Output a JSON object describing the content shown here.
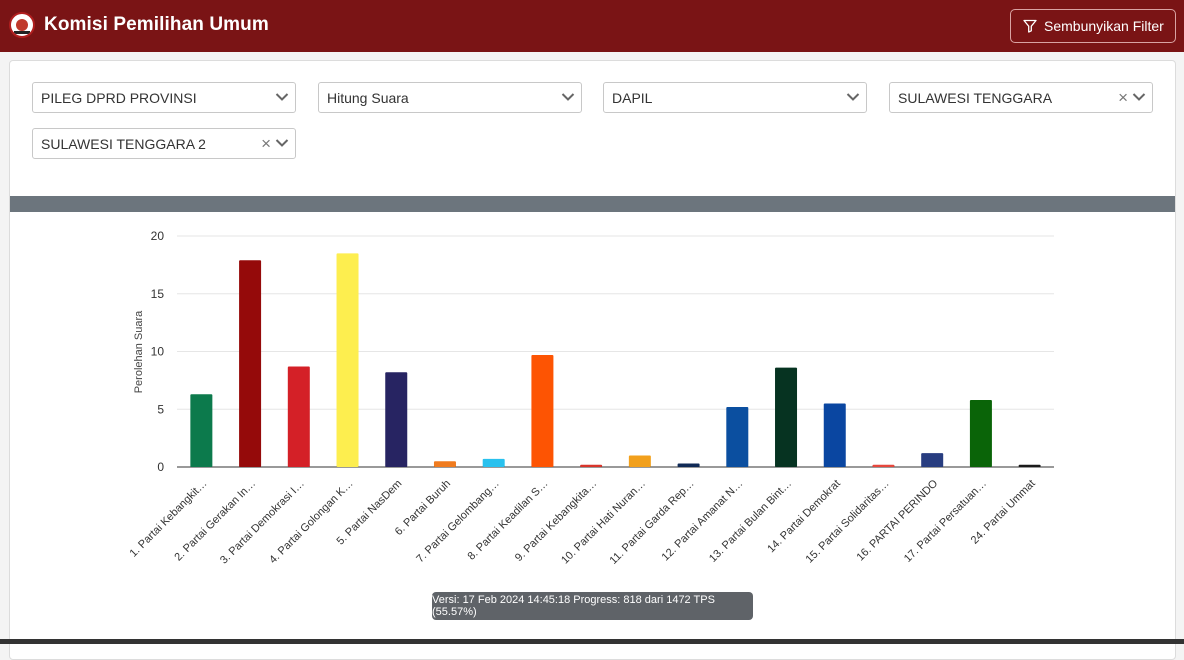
{
  "header": {
    "brand": "Komisi Pemilihan Umum",
    "filter_button": "Sembunyikan Filter",
    "color": "#7a1415"
  },
  "filters": [
    {
      "value": "PILEG DPRD PROVINSI",
      "clearable": false
    },
    {
      "value": "Hitung Suara",
      "clearable": false
    },
    {
      "value": "DAPIL",
      "clearable": false
    },
    {
      "value": "SULAWESI TENGGARA",
      "clearable": true
    },
    {
      "value": "SULAWESI TENGGARA 2",
      "clearable": true
    }
  ],
  "chart_data": {
    "type": "bar",
    "ylabel": "Perolehan Suara",
    "ylim": [
      0,
      20
    ],
    "yticks": [
      0,
      5,
      10,
      15,
      20
    ],
    "grid": true,
    "categories": [
      "1. Partai Kebangkit…",
      "2. Partai Gerakan In…",
      "3. Partai Demokrasi I…",
      "4. Partai Golongan K…",
      "5. Partai NasDem",
      "6. Partai Buruh",
      "7. Partai Gelombang…",
      "8. Partai Keadilan S…",
      "9. Partai Kebangkita…",
      "10. Partai Hati Nuran…",
      "11. Partai Garda Rep…",
      "12. Partai Amanat N…",
      "13. Partai Bulan Bint…",
      "14. Partai Demokrat",
      "15. Partai Solidaritas…",
      "16. PARTAI PERINDO",
      "17. Partai Persatuan…",
      "24. Partai Ummat"
    ],
    "values": [
      6.3,
      17.9,
      8.7,
      18.5,
      8.2,
      0.5,
      0.7,
      9.7,
      0.2,
      1.0,
      0.3,
      5.2,
      8.6,
      5.5,
      0.2,
      1.2,
      5.8,
      0.2
    ],
    "colors": [
      "#0c7a4c",
      "#950a0a",
      "#d42027",
      "#fdee4f",
      "#272462",
      "#f07b1e",
      "#29c1ee",
      "#fd5403",
      "#d8352b",
      "#f2a01c",
      "#102a56",
      "#0b4fa0",
      "#063321",
      "#0a46a1",
      "#e6473c",
      "#283d80",
      "#0a6408",
      "#1a1a1a"
    ]
  },
  "footer": {
    "version_text": "Versi: 17 Feb 2024 14:45:18 Progress: 818 dari 1472 TPS (55.57%)"
  }
}
